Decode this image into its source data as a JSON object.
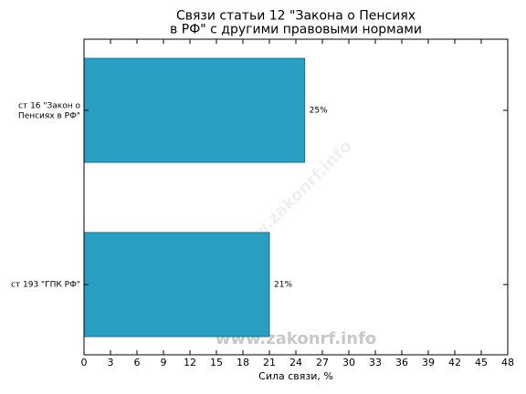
{
  "chart_data": {
    "type": "barh",
    "title": "Связи статьи 12 \"Закона о Пенсиях\nв РФ\" с другими правовыми нормами",
    "categories": [
      "ст 16 \"Закон о\nПенсиях в РФ\"",
      "ст 193 \"ГПК РФ\""
    ],
    "values": [
      25,
      21
    ],
    "value_labels": [
      "25%",
      "21%"
    ],
    "color": "#2a9fc4",
    "xlabel": "Сила связи, %",
    "xlim": [
      0,
      48
    ],
    "xticks": [
      0,
      3,
      6,
      9,
      12,
      15,
      18,
      21,
      24,
      27,
      30,
      33,
      36,
      39,
      42,
      45,
      48
    ],
    "watermark": "www.zakonrf.info"
  }
}
